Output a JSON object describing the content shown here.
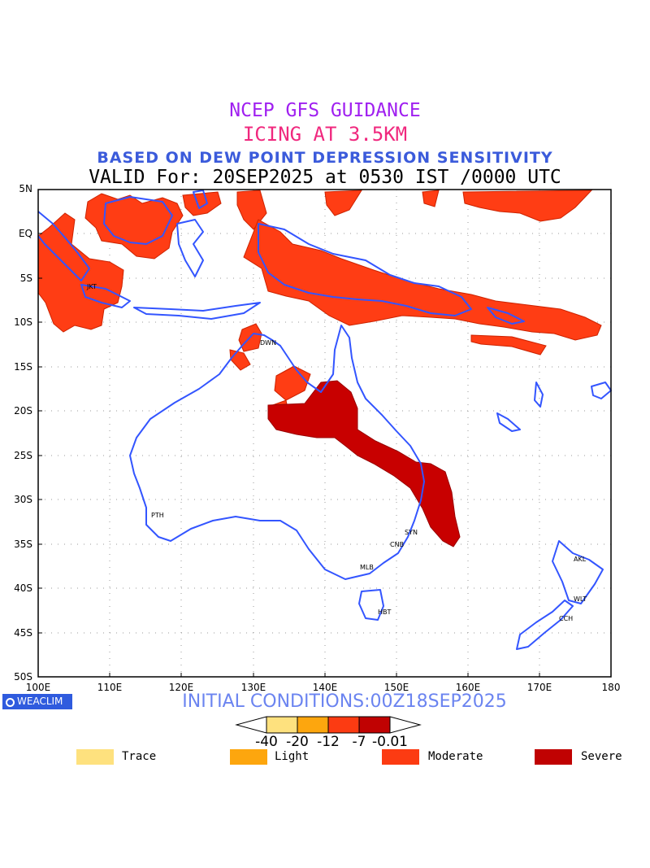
{
  "header": {
    "line1": "NCEP GFS GUIDANCE",
    "line2": "ICING AT 3.5KM",
    "line3": "BASED ON DEW POINT DEPRESSION SENSITIVITY",
    "line4": "VALID For: 20SEP2025 at 0530 IST /0000 UTC"
  },
  "axes": {
    "lat_labels": [
      "5N",
      "EQ",
      "5S",
      "10S",
      "15S",
      "20S",
      "25S",
      "30S",
      "35S",
      "40S",
      "45S",
      "50S"
    ],
    "lon_labels": [
      "100E",
      "110E",
      "120E",
      "130E",
      "140E",
      "150E",
      "160E",
      "170E",
      "180"
    ],
    "lat_range": [
      -50,
      5
    ],
    "lon_range": [
      100,
      180
    ],
    "grid": true
  },
  "cities": [
    {
      "name": "JKT",
      "lon": 106.8,
      "lat": -6.2
    },
    {
      "name": "DWN",
      "lon": 130.8,
      "lat": -12.4
    },
    {
      "name": "PTH",
      "lon": 115.9,
      "lat": -31.9
    },
    {
      "name": "SYN",
      "lon": 151.2,
      "lat": -33.9
    },
    {
      "name": "CNB",
      "lon": 149.1,
      "lat": -35.3
    },
    {
      "name": "MLB",
      "lon": 144.9,
      "lat": -37.8
    },
    {
      "name": "HBT",
      "lon": 147.3,
      "lat": -42.9
    },
    {
      "name": "AKL",
      "lon": 174.8,
      "lat": -36.8
    },
    {
      "name": "WLT",
      "lon": 174.8,
      "lat": -41.3
    },
    {
      "name": "CCH",
      "lon": 172.6,
      "lat": -43.5
    }
  ],
  "footer": {
    "logo": "WEACLIM",
    "initial_conditions": "INITIAL CONDITIONS:00Z18SEP2025"
  },
  "colorbar": {
    "ticks": [
      "-40",
      "-20",
      "-12",
      "-7",
      "-0.01"
    ],
    "colors": [
      "#fee17e",
      "#fda60e",
      "#fc3b12",
      "#c00202"
    ]
  },
  "legend": [
    {
      "label": "Trace",
      "color": "#fee17e"
    },
    {
      "label": "Light",
      "color": "#fda60e"
    },
    {
      "label": "Moderate",
      "color": "#fc3b12"
    },
    {
      "label": "Severe",
      "color": "#c00202"
    }
  ],
  "colors": {
    "coastline": "#3355ff",
    "moderate_fill": "#ff3d14",
    "severe_fill": "#c00000"
  }
}
